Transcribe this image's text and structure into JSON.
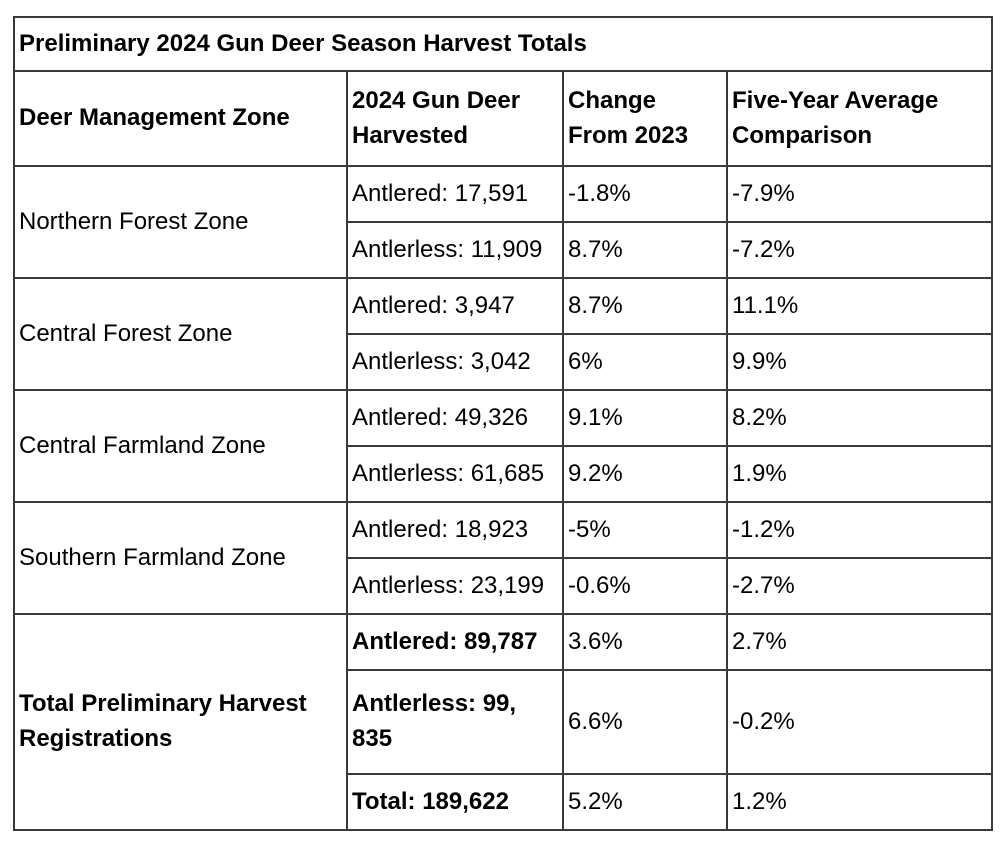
{
  "title": "Preliminary 2024 Gun Deer Season Harvest Totals",
  "table": {
    "columns": [
      "Deer Management Zone",
      "2024 Gun Deer Harvested",
      "Change From 2023",
      "Five-Year Average Comparison"
    ],
    "zones": [
      {
        "zone": "Northern Forest Zone",
        "rows": [
          {
            "harvested": "Antlered: 17,591",
            "change": "-1.8%",
            "five_year": "-7.9%"
          },
          {
            "harvested": "Antlerless: 11,909",
            "change": "8.7%",
            "five_year": "-7.2%"
          }
        ]
      },
      {
        "zone": "Central Forest Zone",
        "rows": [
          {
            "harvested": "Antlered: 3,947",
            "change": "8.7%",
            "five_year": "11.1%"
          },
          {
            "harvested": "Antlerless: 3,042",
            "change": "6%",
            "five_year": "9.9%"
          }
        ]
      },
      {
        "zone": "Central Farmland Zone",
        "rows": [
          {
            "harvested": "Antlered: 49,326",
            "change": "9.1%",
            "five_year": "8.2%"
          },
          {
            "harvested": "Antlerless: 61,685",
            "change": "9.2%",
            "five_year": "1.9%"
          }
        ]
      },
      {
        "zone": "Southern Farmland Zone",
        "rows": [
          {
            "harvested": "Antlered: 18,923",
            "change": "-5%",
            "five_year": "-1.2%"
          },
          {
            "harvested": "Antlerless: 23,199",
            "change": "-0.6%",
            "five_year": "-2.7%"
          }
        ]
      }
    ],
    "totals": {
      "zone": "Total Preliminary Harvest Registrations",
      "rows": [
        {
          "harvested": "Antlered: 89,787",
          "change": "3.6%",
          "five_year": "2.7%"
        },
        {
          "harvested": "Antlerless: 99, 835",
          "change": "6.6%",
          "five_year": "-0.2%"
        },
        {
          "harvested": "Total: 189,622",
          "change": "5.2%",
          "five_year": "1.2%"
        }
      ]
    }
  },
  "chart_data": {
    "type": "table",
    "title": "Preliminary 2024 Gun Deer Season Harvest Totals",
    "columns": [
      "Deer Management Zone",
      "2024 Gun Deer Harvested",
      "Change From 2023",
      "Five-Year Average Comparison"
    ],
    "rows": [
      [
        "Northern Forest Zone",
        "Antlered: 17,591",
        "-1.8%",
        "-7.9%"
      ],
      [
        "Northern Forest Zone",
        "Antlerless: 11,909",
        "8.7%",
        "-7.2%"
      ],
      [
        "Central Forest Zone",
        "Antlered: 3,947",
        "8.7%",
        "11.1%"
      ],
      [
        "Central Forest Zone",
        "Antlerless: 3,042",
        "6%",
        "9.9%"
      ],
      [
        "Central Farmland Zone",
        "Antlered: 49,326",
        "9.1%",
        "8.2%"
      ],
      [
        "Central Farmland Zone",
        "Antlerless: 61,685",
        "9.2%",
        "1.9%"
      ],
      [
        "Southern Farmland Zone",
        "Antlered: 18,923",
        "-5%",
        "-1.2%"
      ],
      [
        "Southern Farmland Zone",
        "Antlerless: 23,199",
        "-0.6%",
        "-2.7%"
      ],
      [
        "Total Preliminary Harvest Registrations",
        "Antlered: 89,787",
        "3.6%",
        "2.7%"
      ],
      [
        "Total Preliminary Harvest Registrations",
        "Antlerless: 99, 835",
        "6.6%",
        "-0.2%"
      ],
      [
        "Total Preliminary Harvest Registrations",
        "Total: 189,622",
        "5.2%",
        "1.2%"
      ]
    ],
    "colors": {
      "border": "#3a3a3a",
      "text": "#000000",
      "background": "#ffffff"
    }
  }
}
